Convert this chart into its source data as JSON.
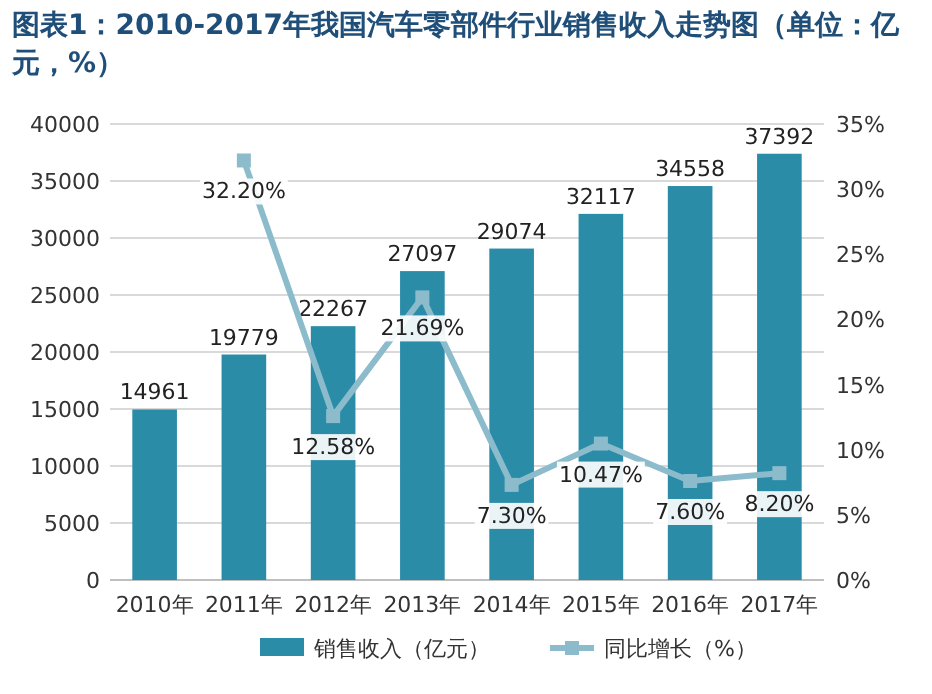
{
  "chart_data": {
    "type": "bar",
    "title": "图表1：2010-2017年我国汽车零部件行业销售收入走势图（单位：亿元，%）",
    "categories": [
      "2010年",
      "2011年",
      "2012年",
      "2013年",
      "2014年",
      "2015年",
      "2016年",
      "2017年"
    ],
    "series": [
      {
        "name": "销售收入（亿元）",
        "color": "#2b8ca8",
        "values": [
          14961,
          19779,
          22267,
          27097,
          29074,
          32117,
          34558,
          37392
        ],
        "value_labels": [
          "14961",
          "19779",
          "22267",
          "27097",
          "29074",
          "32117",
          "34558",
          "37392"
        ]
      },
      {
        "name": "同比增长（%）",
        "type": "line",
        "axis": "y2",
        "color": "#8cbccc",
        "marker": "square",
        "values": [
          null,
          32.2,
          12.58,
          21.69,
          7.3,
          10.47,
          7.6,
          8.2
        ],
        "value_labels": [
          null,
          "32.20%",
          "12.58%",
          "21.69%",
          "7.30%",
          "10.47%",
          "7.60%",
          "8.20%"
        ]
      }
    ],
    "ylim": [
      0,
      40000
    ],
    "yticks": [
      0,
      5000,
      10000,
      15000,
      20000,
      25000,
      30000,
      35000,
      40000
    ],
    "y2lim": [
      0,
      35
    ],
    "y2ticks": [
      {
        "value": 0,
        "label": "0%"
      },
      {
        "value": 5,
        "label": "5%"
      },
      {
        "value": 10,
        "label": "10%"
      },
      {
        "value": 15,
        "label": "15%"
      },
      {
        "value": 20,
        "label": "20%"
      },
      {
        "value": 25,
        "label": "25%"
      },
      {
        "value": 30,
        "label": "30%"
      },
      {
        "value": 35,
        "label": "35%"
      }
    ],
    "grid": "y",
    "legend": "bottom"
  }
}
